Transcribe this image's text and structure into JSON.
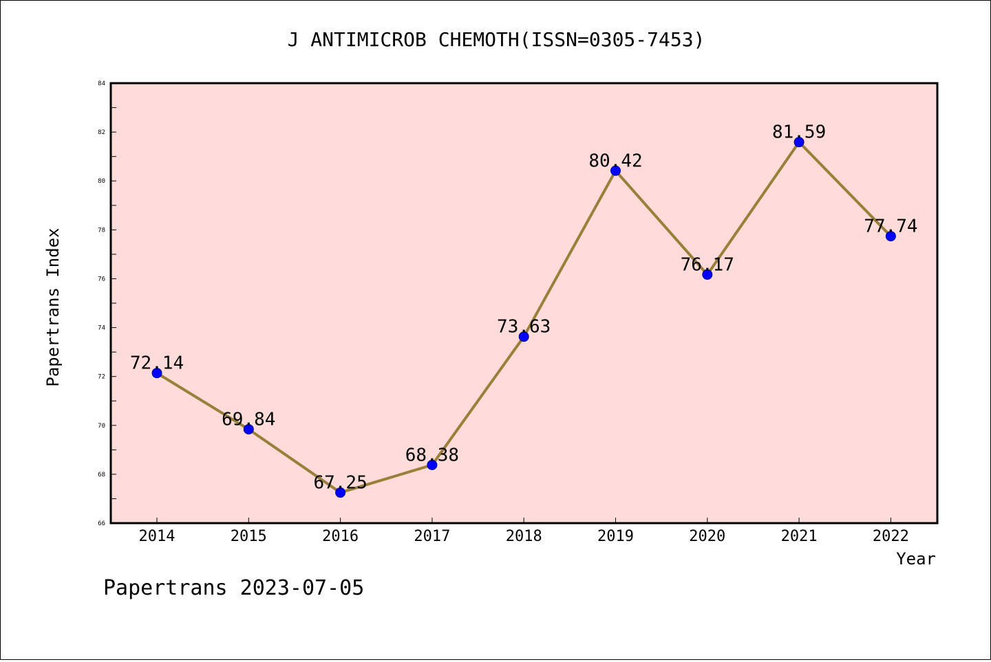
{
  "chart_data": {
    "type": "line",
    "title": "J ANTIMICROB CHEMOTH(ISSN=0305-7453)",
    "xlabel": "Year",
    "ylabel": "Papertrans Index",
    "categories": [
      "2014",
      "2015",
      "2016",
      "2017",
      "2018",
      "2019",
      "2020",
      "2021",
      "2022"
    ],
    "series": [
      {
        "values": [
          72.14,
          69.84,
          67.25,
          68.38,
          73.63,
          80.42,
          76.17,
          81.59,
          77.74
        ]
      }
    ],
    "data_labels": [
      "72.14",
      "69.84",
      "67.25",
      "68.38",
      "73.63",
      "80.42",
      "76.17",
      "81.59",
      "77.74"
    ],
    "ylim": [
      66,
      84
    ],
    "y_ticks": [
      "66",
      "68",
      "70",
      "72",
      "74",
      "76",
      "78",
      "80",
      "82",
      "84"
    ],
    "grid": false,
    "legend": "none",
    "colors": {
      "plot_background": "#ffdcd9",
      "line": "#9a7f3a",
      "marker": "#0000ff"
    }
  },
  "footer": {
    "note": "Papertrans 2023-07-05"
  }
}
